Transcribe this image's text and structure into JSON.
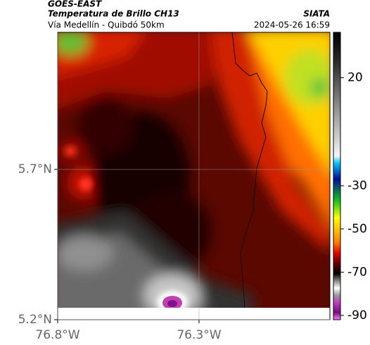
{
  "header": {
    "title": "GOES-EAST",
    "subtitle": "Temperatura de Brillo CH13",
    "region": "Vía Medellín - Quibdó 50km",
    "source": "SIATA",
    "timestamp": "2024-05-26 16:59"
  },
  "map": {
    "lon_range": [
      -76.8,
      -75.837
    ],
    "lat_range": [
      5.2,
      6.156
    ],
    "lon_ticks": [
      {
        "value": -76.8,
        "label": "76.8°W"
      },
      {
        "value": -76.3,
        "label": "76.3°W"
      }
    ],
    "lat_ticks": [
      {
        "value": 5.7,
        "label": "5.7°N"
      },
      {
        "value": 5.2,
        "label": "5.2°N"
      }
    ],
    "grid": true
  },
  "colorbar": {
    "range": [
      -92,
      41
    ],
    "ticks": [
      20,
      -30,
      -50,
      -70,
      -90
    ]
  }
}
